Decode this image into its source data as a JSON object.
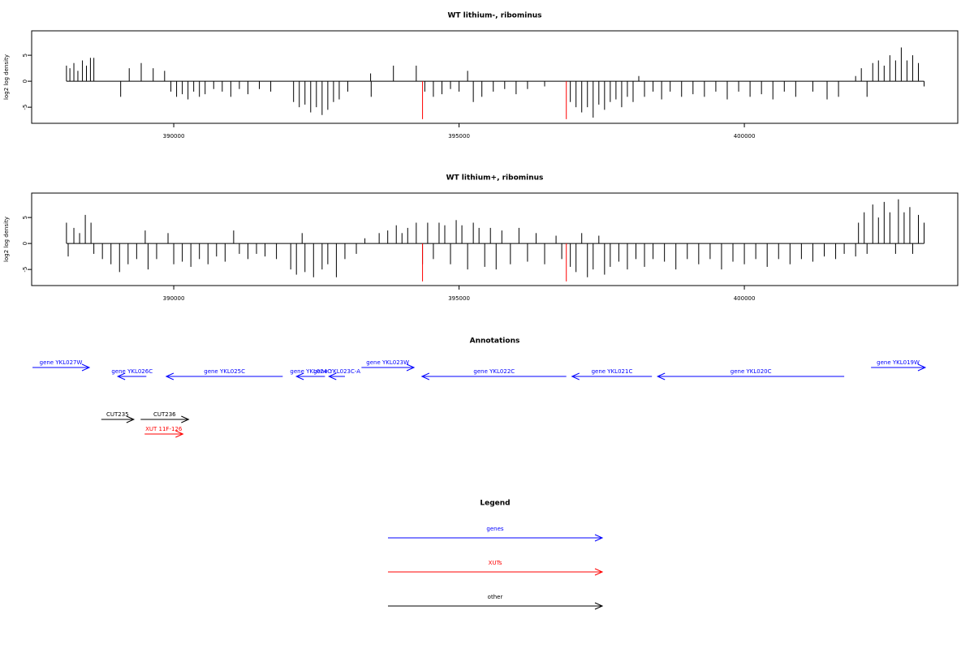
{
  "chart_data": [
    {
      "type": "bar",
      "title": "WT lithium-, ribominus",
      "ylabel": "log2 log density",
      "xlim": [
        387510,
        403740
      ],
      "ylim": [
        -8.1,
        9.7
      ],
      "xticks": [
        390000,
        395000,
        400000
      ],
      "yticks": [
        -5,
        0,
        5
      ],
      "series": [
        {
          "color": "#000000",
          "x": [
            388120,
            388180,
            388250,
            388320,
            388400,
            388470,
            388540,
            388600,
            389070,
            389220,
            389430,
            389640,
            389840,
            389950,
            390050,
            390150,
            390250,
            390350,
            390450,
            390550,
            390700,
            390850,
            391000,
            391150,
            391300,
            391500,
            391700,
            392100,
            392200,
            392300,
            392400,
            392500,
            392600,
            392700,
            392800,
            392900,
            393050,
            393450,
            393460,
            393850,
            394250,
            394400,
            394550,
            394700,
            394850,
            395000,
            395150,
            395250,
            395400,
            395600,
            395800,
            396000,
            396200,
            396500,
            396950,
            397050,
            397150,
            397250,
            397350,
            397450,
            397550,
            397650,
            397750,
            397850,
            397950,
            398050,
            398150,
            398250,
            398400,
            398550,
            398700,
            398900,
            399100,
            399300,
            399500,
            399700,
            399900,
            400100,
            400300,
            400500,
            400700,
            400900,
            401200,
            401450,
            401650,
            401950,
            402050,
            402150,
            402250,
            402350,
            402450,
            402550,
            402650,
            402750,
            402850,
            402950,
            403050,
            403150
          ],
          "values": [
            3,
            2.5,
            3.5,
            2,
            4,
            3,
            4.5,
            4.5,
            -3,
            2.5,
            3.5,
            2.5,
            2,
            -2,
            -3,
            -2.5,
            -3.5,
            -2,
            -3,
            -2.5,
            -1.5,
            -2,
            -3,
            -1.5,
            -2.5,
            -1.5,
            -2,
            -4,
            -5,
            -4.5,
            -6,
            -5,
            -6.5,
            -5.5,
            -4,
            -3.5,
            -2,
            1.5,
            -3,
            3,
            3,
            -2,
            -3,
            -2.5,
            -1.5,
            -2,
            2,
            -4,
            -3,
            -2,
            -1.5,
            -2.5,
            -1.5,
            -1,
            -4,
            -5,
            -6,
            -5,
            -7,
            -4.5,
            -5.5,
            -4,
            -3.5,
            -5,
            -3,
            -4,
            1,
            -3,
            -2,
            -3.5,
            -2,
            -3,
            -2.5,
            -3,
            -2,
            -3.5,
            -2,
            -3,
            -2.5,
            -3.5,
            -2,
            -3,
            -2,
            -3.5,
            -3,
            1,
            2.5,
            -3,
            3.5,
            4,
            3,
            5,
            4,
            6.5,
            4,
            5,
            3.5,
            -1
          ]
        },
        {
          "color": "#ff0000",
          "x": [
            394360,
            396880
          ],
          "values": [
            -7.3,
            -7.3
          ]
        }
      ]
    },
    {
      "type": "bar",
      "title": "WT lithium+, ribominus",
      "ylabel": "log2 log density",
      "xlim": [
        387510,
        403740
      ],
      "ylim": [
        -8.1,
        9.7
      ],
      "xticks": [
        390000,
        395000,
        400000
      ],
      "yticks": [
        -5,
        0,
        5
      ],
      "series": [
        {
          "color": "#000000",
          "x": [
            388120,
            388150,
            388250,
            388350,
            388450,
            388550,
            388600,
            388750,
            388900,
            389050,
            389200,
            389350,
            389500,
            389550,
            389700,
            389900,
            390000,
            390150,
            390300,
            390450,
            390600,
            390750,
            390900,
            391050,
            391150,
            391300,
            391450,
            391600,
            391800,
            392050,
            392150,
            392250,
            392300,
            392450,
            392600,
            392700,
            392850,
            393000,
            393200,
            393350,
            393600,
            393750,
            393900,
            394000,
            394100,
            394250,
            394360,
            394450,
            394550,
            394650,
            394750,
            394850,
            394950,
            395050,
            395150,
            395250,
            395350,
            395450,
            395550,
            395650,
            395750,
            395900,
            396050,
            396200,
            396350,
            396500,
            396700,
            396800,
            396950,
            397050,
            397150,
            397250,
            397350,
            397450,
            397550,
            397650,
            397800,
            397950,
            398100,
            398250,
            398400,
            398600,
            398800,
            399000,
            399200,
            399400,
            399600,
            399800,
            400000,
            400200,
            400400,
            400600,
            400800,
            401000,
            401200,
            401400,
            401600,
            401750,
            401950,
            402000,
            402100,
            402150,
            402250,
            402350,
            402450,
            402550,
            402650,
            402700,
            402800,
            402900,
            402950,
            403050,
            403150
          ],
          "values": [
            4,
            -2.5,
            3,
            2,
            5.5,
            4,
            -2,
            -3,
            -4,
            -5.5,
            -4,
            -3,
            2.5,
            -5,
            -3,
            2,
            -4,
            -3.5,
            -4.5,
            -3,
            -4,
            -2.5,
            -3.5,
            2.5,
            -2,
            -3,
            -2,
            -2.5,
            -3,
            -5,
            -6,
            2,
            -5.5,
            -6.5,
            -5,
            -4,
            -6.5,
            -3,
            -2,
            1,
            2,
            2.5,
            3.5,
            2,
            3,
            4,
            -4,
            4,
            -3,
            4,
            3.5,
            -4,
            4.5,
            3.5,
            -5,
            4,
            3,
            -4.5,
            3,
            -5,
            2.5,
            -4,
            3,
            -3.5,
            2,
            -4,
            1.5,
            -3,
            -4.5,
            -5.5,
            2,
            -6.5,
            -5,
            1.5,
            -6,
            -4.5,
            -3.5,
            -5,
            -3,
            -4.5,
            -3,
            -3.5,
            -5,
            -3,
            -4,
            -3,
            -5,
            -3.5,
            -4,
            -3,
            -4.5,
            -3,
            -4,
            -3,
            -3.5,
            -2.5,
            -3,
            -2,
            -2.5,
            4,
            6,
            -2,
            7.5,
            5,
            8,
            6,
            -2,
            8.5,
            6,
            7,
            -2,
            5.5,
            4
          ]
        },
        {
          "color": "#ff0000",
          "x": [
            394360,
            396880
          ],
          "values": [
            -7.3,
            -7.3
          ]
        }
      ]
    },
    {
      "type": "annotation",
      "title": "Annotations",
      "xlim": [
        387510,
        403740
      ],
      "features": [
        {
          "label": "gene YKL027W",
          "start": 387525,
          "end": 388520,
          "strand": "+",
          "color": "#0000ff"
        },
        {
          "label": "gene YKL026C",
          "start": 389020,
          "end": 389520,
          "strand": "-",
          "color": "#0000ff"
        },
        {
          "label": "gene YKL025C",
          "start": 389870,
          "end": 391910,
          "strand": "-",
          "color": "#0000ff"
        },
        {
          "label": "gene YKL024C",
          "start": 392150,
          "end": 392650,
          "strand": "-",
          "color": "#0000ff"
        },
        {
          "label": "gene YKL023C-A",
          "start": 392720,
          "end": 393000,
          "strand": "-",
          "color": "#0000ff"
        },
        {
          "label": "gene YKL023W",
          "start": 393290,
          "end": 394210,
          "strand": "+",
          "color": "#0000ff"
        },
        {
          "label": "gene YKL022C",
          "start": 394350,
          "end": 396880,
          "strand": "-",
          "color": "#0000ff"
        },
        {
          "label": "gene YKL021C",
          "start": 396980,
          "end": 398380,
          "strand": "-",
          "color": "#0000ff"
        },
        {
          "label": "gene YKL020C",
          "start": 398480,
          "end": 401750,
          "strand": "-",
          "color": "#0000ff"
        },
        {
          "label": "gene YKL019W",
          "start": 402220,
          "end": 403170,
          "strand": "+",
          "color": "#0000ff"
        },
        {
          "label": "CUT235",
          "start": 388730,
          "end": 389300,
          "strand": "+",
          "color": "#000000"
        },
        {
          "label": "CUT236",
          "start": 389420,
          "end": 390260,
          "strand": "+",
          "color": "#000000"
        },
        {
          "label": "XUT 11F-126",
          "start": 389490,
          "end": 390160,
          "strand": "+",
          "color": "#ff0000"
        }
      ]
    }
  ],
  "legend": {
    "title": "Legend",
    "items": [
      {
        "name": "genes",
        "color": "#0000ff"
      },
      {
        "name": "XUTs",
        "color": "#ff0000"
      },
      {
        "name": "other",
        "color": "#000000"
      }
    ]
  }
}
